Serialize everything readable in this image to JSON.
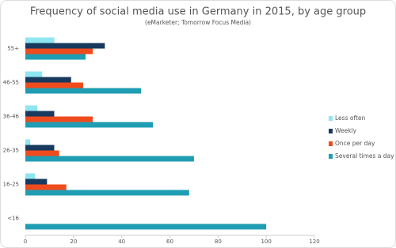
{
  "chart_data": {
    "type": "hbar",
    "title": "Frequency of social media use in Germany in 2015, by age group",
    "subtitle": "(eMarketer; Tomorrow Focus Media)",
    "categories": [
      "55+",
      "46-55",
      "36-46",
      "26-35",
      "16-25",
      "<16"
    ],
    "series": [
      {
        "name": "Less often",
        "color": "#8ee6f0",
        "values": [
          12,
          7,
          5,
          2,
          4,
          0
        ]
      },
      {
        "name": "Weekly",
        "color": "#173a5e",
        "values": [
          33,
          19,
          12,
          12,
          9,
          0
        ]
      },
      {
        "name": "Once per day",
        "color": "#f04b1c",
        "values": [
          28,
          24,
          28,
          14,
          17,
          0
        ]
      },
      {
        "name": "Several times a day",
        "color": "#1f9db3",
        "values": [
          25,
          48,
          53,
          70,
          68,
          100
        ]
      }
    ],
    "xlim": [
      0,
      120
    ],
    "xticks": [
      0,
      20,
      40,
      60,
      80,
      100,
      120
    ],
    "grid": false
  }
}
